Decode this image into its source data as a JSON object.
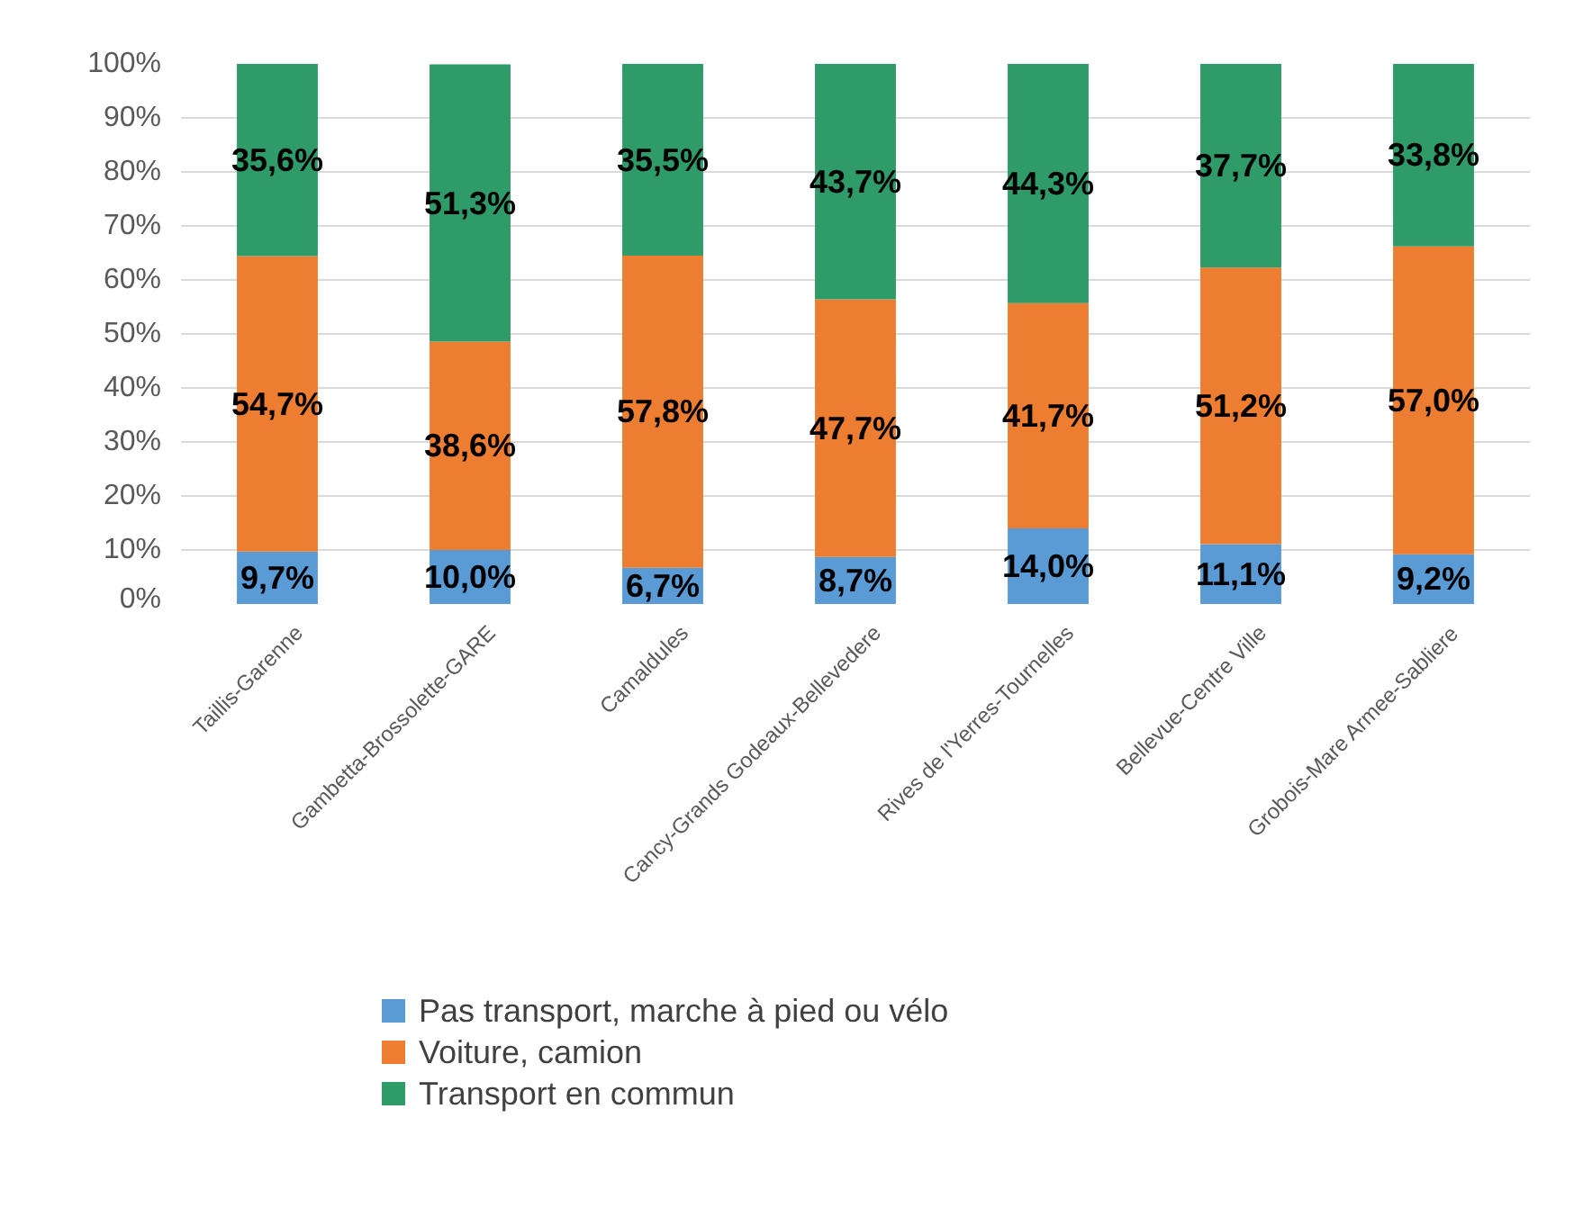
{
  "chart_data": {
    "type": "bar",
    "stacked": true,
    "categories": [
      "Taillis-Garenne",
      "Gambetta-Brossolette-GARE",
      "Camaldules",
      "Cancy-Grands Godeaux-Bellevedere",
      "Rives de l'Yerres-Tournelles",
      "Bellevue-Centre Ville",
      "Grobois-Mare Armee-Sabliere"
    ],
    "series": [
      {
        "name": "Pas transport, marche à pied ou vélo",
        "color": "#5b9bd5",
        "values": [
          9.7,
          10.0,
          6.7,
          8.7,
          14.0,
          11.1,
          9.2
        ],
        "value_labels": [
          "9,7%",
          "10,0%",
          "6,7%",
          "8,7%",
          "14,0%",
          "11,1%",
          "9,2%"
        ]
      },
      {
        "name": "Voiture, camion",
        "color": "#ed7d31",
        "values": [
          54.7,
          38.6,
          57.8,
          47.7,
          41.7,
          51.2,
          57.0
        ],
        "value_labels": [
          "54,7%",
          "38,6%",
          "57,8%",
          "47,7%",
          "41,7%",
          "51,2%",
          "57,0%"
        ]
      },
      {
        "name": "Transport en commun",
        "color": "#2e9b68",
        "values": [
          35.6,
          51.3,
          35.5,
          43.7,
          44.3,
          37.7,
          33.8
        ],
        "value_labels": [
          "35,6%",
          "51,3%",
          "35,5%",
          "43,7%",
          "44,3%",
          "37,7%",
          "33,8%"
        ]
      }
    ],
    "ylim": [
      0,
      100
    ],
    "yticks": [
      {
        "value": 0,
        "label": "0%"
      },
      {
        "value": 10,
        "label": "10%"
      },
      {
        "value": 20,
        "label": "20%"
      },
      {
        "value": 30,
        "label": "30%"
      },
      {
        "value": 40,
        "label": "40%"
      },
      {
        "value": 50,
        "label": "50%"
      },
      {
        "value": 60,
        "label": "60%"
      },
      {
        "value": 70,
        "label": "70%"
      },
      {
        "value": 80,
        "label": "80%"
      },
      {
        "value": 90,
        "label": "90%"
      },
      {
        "value": 100,
        "label": "100%"
      }
    ],
    "grid": "y",
    "legend": "bottom"
  }
}
